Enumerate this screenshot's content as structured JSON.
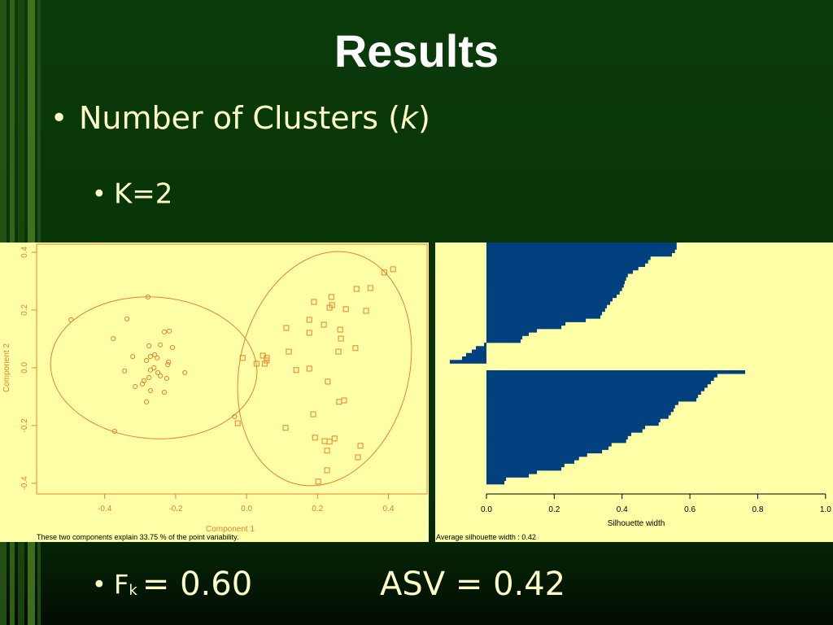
{
  "title": "Results",
  "bullet": "•",
  "bullets": [
    {
      "parts": [
        "Number of Clusters (",
        "k",
        ")"
      ]
    },
    {
      "parts": [
        "K=2"
      ]
    }
  ],
  "bottom": {
    "f": "F",
    "sub": "k",
    "f_value": "= 0.60",
    "asv": "ASV = 0.42"
  },
  "chart_data": [
    {
      "type": "scatter",
      "xlabel": "Component 1",
      "ylabel": "Component 2",
      "note": "These two components explain 33.75 % of the point variability.",
      "xlim": [
        -0.592,
        0.509
      ],
      "ylim": [
        -0.437,
        0.428
      ],
      "xticks": [
        -0.4,
        -0.2,
        {
          "value": 0,
          "label": "0.0"
        },
        0.2,
        0.4
      ],
      "yticks": [
        -0.4,
        -0.2,
        {
          "value": 0,
          "label": "0.0"
        },
        0.2,
        0.4
      ],
      "color": "#e8822a",
      "series": [
        {
          "marker": "circle",
          "color": "#e8822a",
          "x": [
            -0.495,
            -0.337,
            -0.278,
            -0.376,
            -0.232,
            -0.218,
            -0.321,
            -0.275,
            -0.243,
            -0.259,
            -0.209,
            -0.271,
            -0.252,
            -0.22,
            -0.344,
            -0.282,
            -0.261,
            -0.271,
            -0.25,
            -0.222,
            -0.174,
            -0.243,
            -0.289,
            -0.275,
            -0.225,
            -0.314,
            -0.294,
            -0.271,
            -0.232,
            -0.282,
            -0.372,
            -0.034
          ],
          "y": [
            0.166,
            0.169,
            0.245,
            0.101,
            0.124,
            0.127,
            0.039,
            0.076,
            0.079,
            0.045,
            0.07,
            0.039,
            0.034,
            0.02,
            -0.011,
            0.025,
            0.0,
            -0.008,
            -0.017,
            0.011,
            -0.017,
            -0.028,
            -0.045,
            -0.034,
            -0.037,
            -0.065,
            -0.056,
            -0.079,
            -0.085,
            -0.118,
            -0.22,
            -0.169
          ]
        },
        {
          "marker": "square",
          "color": "#e8822a",
          "x": [
            0.413,
            0.388,
            0.349,
            0.31,
            0.239,
            0.19,
            0.241,
            0.234,
            0.28,
            0.337,
            0.177,
            0.218,
            0.112,
            0.177,
            0.264,
            0.266,
            0.307,
            0.259,
            0.119,
            -0.011,
            0.046,
            0.057,
            0.057,
            0.051,
            0.177,
            0.14,
            0.028,
            0.229,
            0.275,
            0.261,
            0.188,
            -0.025,
            0.11,
            0.193,
            0.22,
            0.234,
            0.248,
            0.321,
            0.227,
            0.314,
            0.227,
            0.202
          ],
          "y": [
            0.341,
            0.33,
            0.276,
            0.273,
            0.245,
            0.228,
            0.217,
            0.208,
            0.203,
            0.197,
            0.166,
            0.149,
            0.138,
            0.121,
            0.132,
            0.101,
            0.068,
            0.056,
            0.056,
            0.034,
            0.042,
            0.034,
            0.025,
            0.014,
            -0.003,
            -0.008,
            0.014,
            -0.048,
            -0.113,
            -0.118,
            -0.161,
            -0.192,
            -0.208,
            -0.242,
            -0.254,
            -0.256,
            -0.245,
            -0.27,
            -0.287,
            -0.31,
            -0.355,
            -0.394
          ]
        }
      ]
    },
    {
      "type": "bar",
      "orientation": "horizontal",
      "xlabel": "Silhouette width",
      "note": "Average silhouette width :  0.42",
      "xlim": [
        -0.151,
        1.022
      ],
      "xticks": [
        {
          "value": 0,
          "label": "0.0"
        },
        0.2,
        0.4,
        0.6,
        0.8,
        {
          "value": 1,
          "label": "1.0"
        }
      ],
      "series": [
        {
          "color": "#00407f",
          "values": [
            0.561,
            0.561,
            0.556,
            0.547,
            0.484,
            0.477,
            0.468,
            0.448,
            0.432,
            0.417,
            0.412,
            0.408,
            0.405,
            0.4,
            0.393,
            0.384,
            0.372,
            0.365,
            0.355,
            0.35,
            0.341,
            0.336,
            0.293,
            0.233,
            0.221,
            0.149,
            0.125,
            0.106,
            0.101,
            -0.007,
            -0.031,
            -0.043,
            -0.06,
            -0.072,
            -0.108
          ]
        },
        {
          "color": "#00407f",
          "values": [
            0.763,
            0.681,
            0.671,
            0.662,
            0.652,
            0.643,
            0.633,
            0.624,
            0.619,
            0.566,
            0.556,
            0.552,
            0.544,
            0.537,
            0.513,
            0.508,
            0.468,
            0.46,
            0.427,
            0.417,
            0.412,
            0.369,
            0.36,
            0.341,
            0.297,
            0.273,
            0.259,
            0.23,
            0.221,
            0.149,
            0.125,
            0.058,
            0.053
          ]
        }
      ]
    }
  ]
}
